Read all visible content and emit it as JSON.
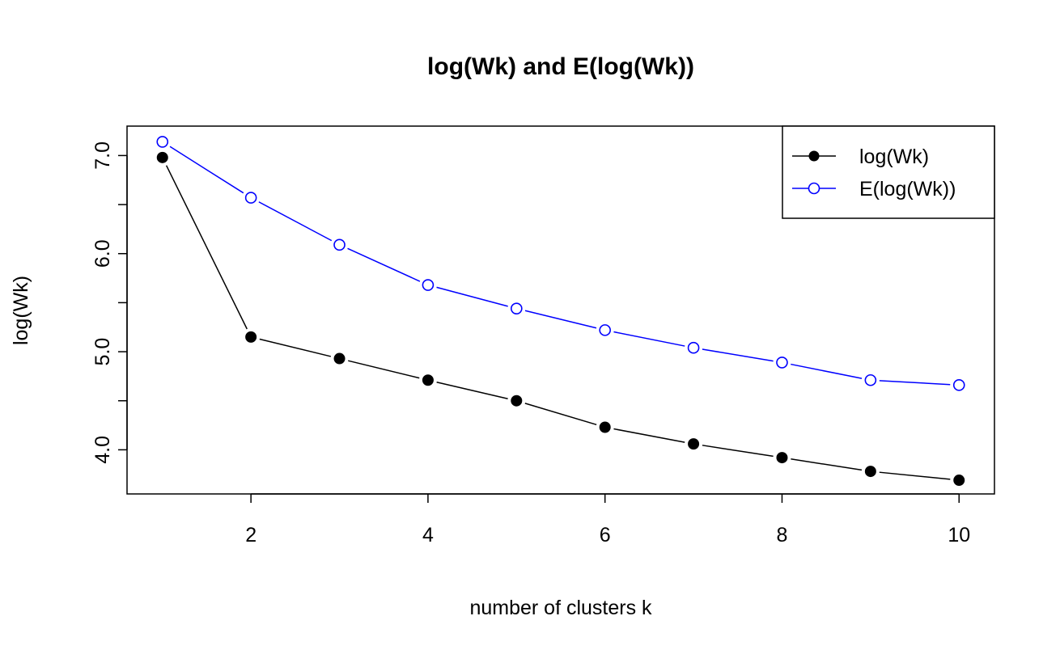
{
  "chart_data": {
    "type": "line",
    "title": "log(Wk) and E(log(Wk))",
    "xlabel": "number of clusters k",
    "ylabel": "log(Wk)",
    "xlim": [
      0.6,
      10.4
    ],
    "ylim": [
      3.55,
      7.3
    ],
    "x": [
      1,
      2,
      3,
      4,
      5,
      6,
      7,
      8,
      9,
      10
    ],
    "x_ticks": [
      2,
      4,
      6,
      8,
      10
    ],
    "x_tick_labels": [
      "2",
      "4",
      "6",
      "8",
      "10"
    ],
    "y_ticks": [
      4.0,
      4.5,
      5.0,
      5.5,
      6.0,
      6.5,
      7.0
    ],
    "y_tick_labels": [
      "4.0",
      "",
      "5.0",
      "",
      "6.0",
      "",
      "7.0"
    ],
    "grid": false,
    "legend_position": "top-right",
    "series": [
      {
        "name": "log(Wk)",
        "color": "#000000",
        "marker": "filled-circle",
        "values": [
          6.98,
          5.15,
          4.93,
          4.71,
          4.5,
          4.23,
          4.06,
          3.92,
          3.78,
          3.69
        ]
      },
      {
        "name": "E(log(Wk))",
        "color": "#0000ff",
        "marker": "open-circle",
        "values": [
          7.14,
          6.57,
          6.09,
          5.68,
          5.44,
          5.22,
          5.04,
          4.89,
          4.71,
          4.66
        ]
      }
    ]
  }
}
